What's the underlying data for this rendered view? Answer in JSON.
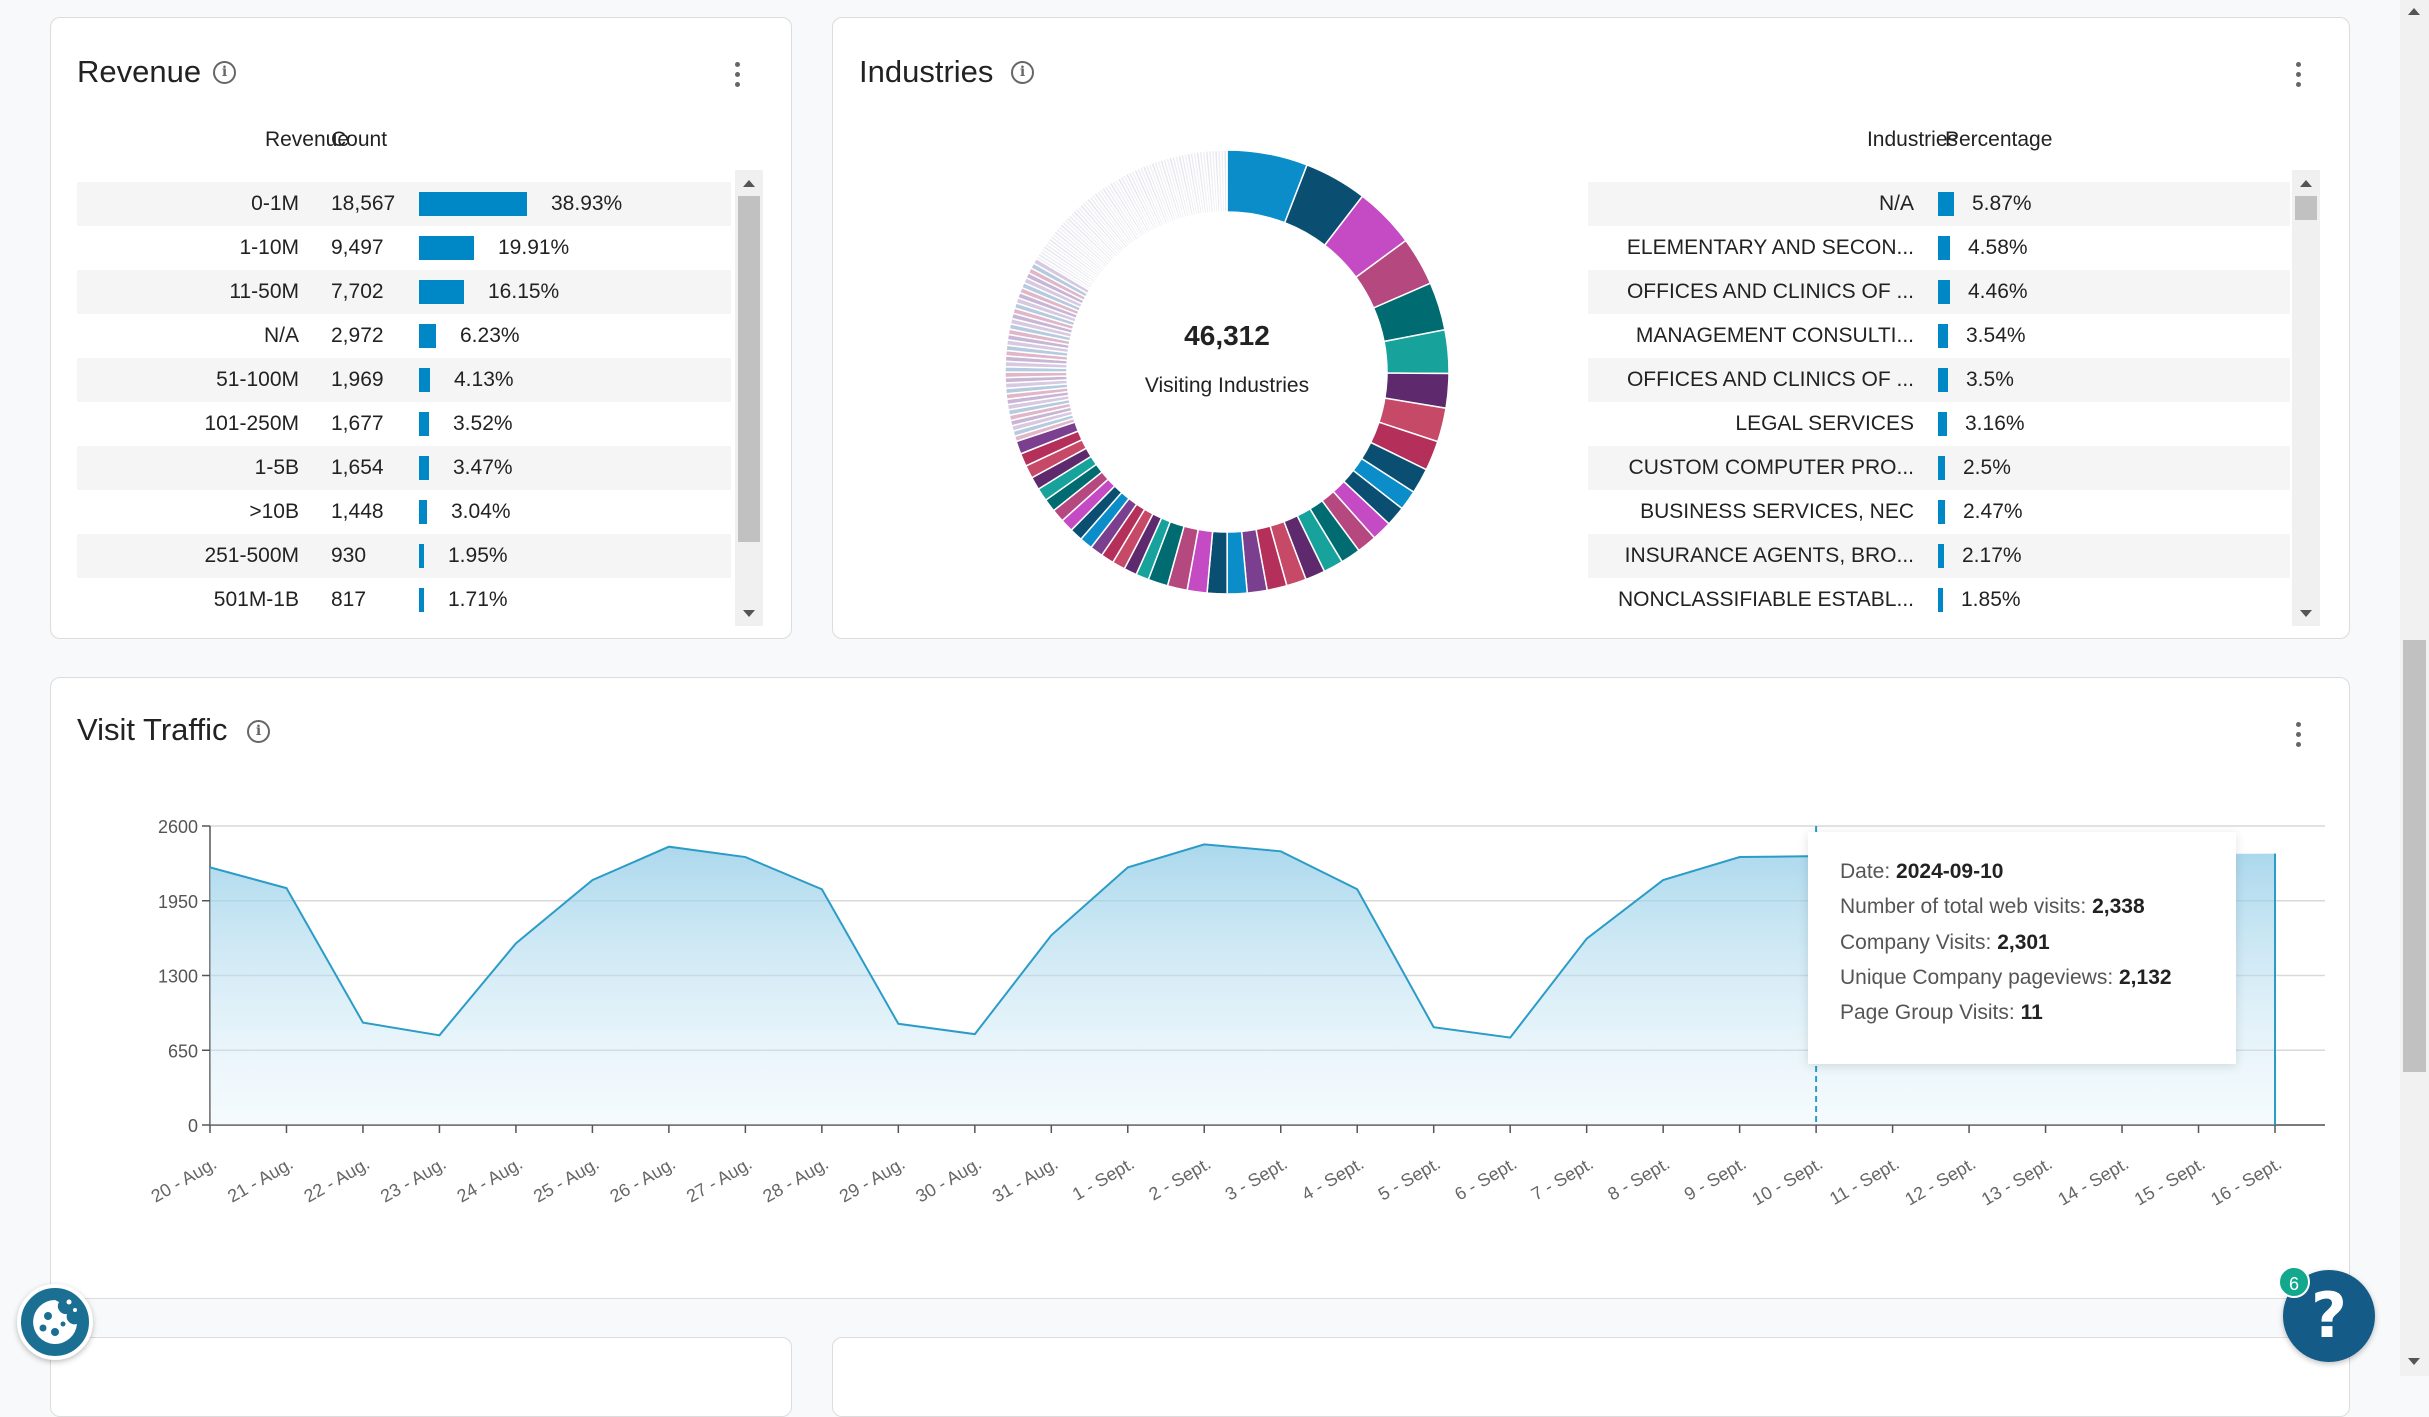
{
  "revenue": {
    "title": "Revenue",
    "col_revenue": "Revenue",
    "col_count": "Count",
    "rows": [
      {
        "label": "0-1M",
        "count": "18,567",
        "pct": "38.93%",
        "value": 38.93
      },
      {
        "label": "1-10M",
        "count": "9,497",
        "pct": "19.91%",
        "value": 19.91
      },
      {
        "label": "11-50M",
        "count": "7,702",
        "pct": "16.15%",
        "value": 16.15
      },
      {
        "label": "N/A",
        "count": "2,972",
        "pct": "6.23%",
        "value": 6.23
      },
      {
        "label": "51-100M",
        "count": "1,969",
        "pct": "4.13%",
        "value": 4.13
      },
      {
        "label": "101-250M",
        "count": "1,677",
        "pct": "3.52%",
        "value": 3.52
      },
      {
        "label": "1-5B",
        "count": "1,654",
        "pct": "3.47%",
        "value": 3.47
      },
      {
        "label": ">10B",
        "count": "1,448",
        "pct": "3.04%",
        "value": 3.04
      },
      {
        "label": "251-500M",
        "count": "930",
        "pct": "1.95%",
        "value": 1.95
      },
      {
        "label": "501M-1B",
        "count": "817",
        "pct": "1.71%",
        "value": 1.71
      }
    ]
  },
  "industries": {
    "title": "Industries",
    "donut_value": "46,312",
    "donut_label": "Visiting Industries",
    "col_industry": "Industries",
    "col_pct": "Percentage",
    "rows": [
      {
        "label": "N/A",
        "pct": "5.87%",
        "value": 5.87
      },
      {
        "label": "ELEMENTARY AND SECON...",
        "pct": "4.58%",
        "value": 4.58
      },
      {
        "label": "OFFICES AND CLINICS OF ...",
        "pct": "4.46%",
        "value": 4.46
      },
      {
        "label": "MANAGEMENT CONSULTI...",
        "pct": "3.54%",
        "value": 3.54
      },
      {
        "label": "OFFICES AND CLINICS OF ...",
        "pct": "3.5%",
        "value": 3.5
      },
      {
        "label": "LEGAL SERVICES",
        "pct": "3.16%",
        "value": 3.16
      },
      {
        "label": "CUSTOM COMPUTER PRO...",
        "pct": "2.5%",
        "value": 2.5
      },
      {
        "label": "BUSINESS SERVICES, NEC",
        "pct": "2.47%",
        "value": 2.47
      },
      {
        "label": "INSURANCE AGENTS, BRO...",
        "pct": "2.17%",
        "value": 2.17
      },
      {
        "label": "NONCLASSIFIABLE ESTABL...",
        "pct": "1.85%",
        "value": 1.85
      }
    ]
  },
  "traffic": {
    "title": "Visit Traffic",
    "tooltip": {
      "date_label": "Date:",
      "date": "2024-09-10",
      "total_label": "Number of total web visits:",
      "total": "2,338",
      "company_label": "Company Visits:",
      "company": "2,301",
      "unique_label": "Unique Company pageviews:",
      "unique": "2,132",
      "group_label": "Page Group Visits:",
      "group": "11"
    }
  },
  "colors": {
    "accent": "#0087c6",
    "area_line": "#2b9cc7"
  },
  "chart_data": [
    {
      "type": "pie",
      "title": "Industries",
      "center_value": "46,312",
      "center_label": "Visiting Industries",
      "categories": [
        "N/A",
        "ELEMENTARY AND SECON...",
        "OFFICES AND CLINICS OF ...",
        "MANAGEMENT CONSULTI...",
        "OFFICES AND CLINICS OF ...",
        "LEGAL SERVICES",
        "CUSTOM COMPUTER PRO...",
        "BUSINESS SERVICES, NEC",
        "INSURANCE AGENTS, BRO...",
        "NONCLASSIFIABLE ESTABL..."
      ],
      "values": [
        5.87,
        4.58,
        4.46,
        3.54,
        3.5,
        3.16,
        2.5,
        2.47,
        2.17,
        1.85
      ],
      "colors": [
        "#0b8dc9",
        "#0a4f72",
        "#c44bc4",
        "#b64880",
        "#006b70",
        "#17a39c",
        "#5f2a6d",
        "#c64967",
        "#b4305a",
        "#0a4f72"
      ]
    },
    {
      "type": "area",
      "title": "Visit Traffic",
      "x": [
        "20 - Aug.",
        "21 - Aug.",
        "22 - Aug.",
        "23 - Aug.",
        "24 - Aug.",
        "25 - Aug.",
        "26 - Aug.",
        "27 - Aug.",
        "28 - Aug.",
        "29 - Aug.",
        "30 - Aug.",
        "31 - Aug.",
        "1 - Sept.",
        "2 - Sept.",
        "3 - Sept.",
        "4 - Sept.",
        "5 - Sept.",
        "6 - Sept.",
        "7 - Sept.",
        "8 - Sept.",
        "9 - Sept.",
        "10 - Sept.",
        "11 - Sept.",
        "12 - Sept.",
        "13 - Sept.",
        "14 - Sept.",
        "15 - Sept.",
        "16 - Sept."
      ],
      "values": [
        2240,
        2060,
        890,
        780,
        1580,
        2130,
        2420,
        2330,
        2050,
        880,
        790,
        1650,
        2240,
        2440,
        2380,
        2050,
        850,
        760,
        1620,
        2130,
        2330,
        2338,
        null,
        null,
        null,
        null,
        null,
        2360
      ],
      "yticks": [
        0,
        650,
        1300,
        1950,
        2600
      ],
      "ylim": [
        0,
        2600
      ],
      "grid": true
    }
  ]
}
